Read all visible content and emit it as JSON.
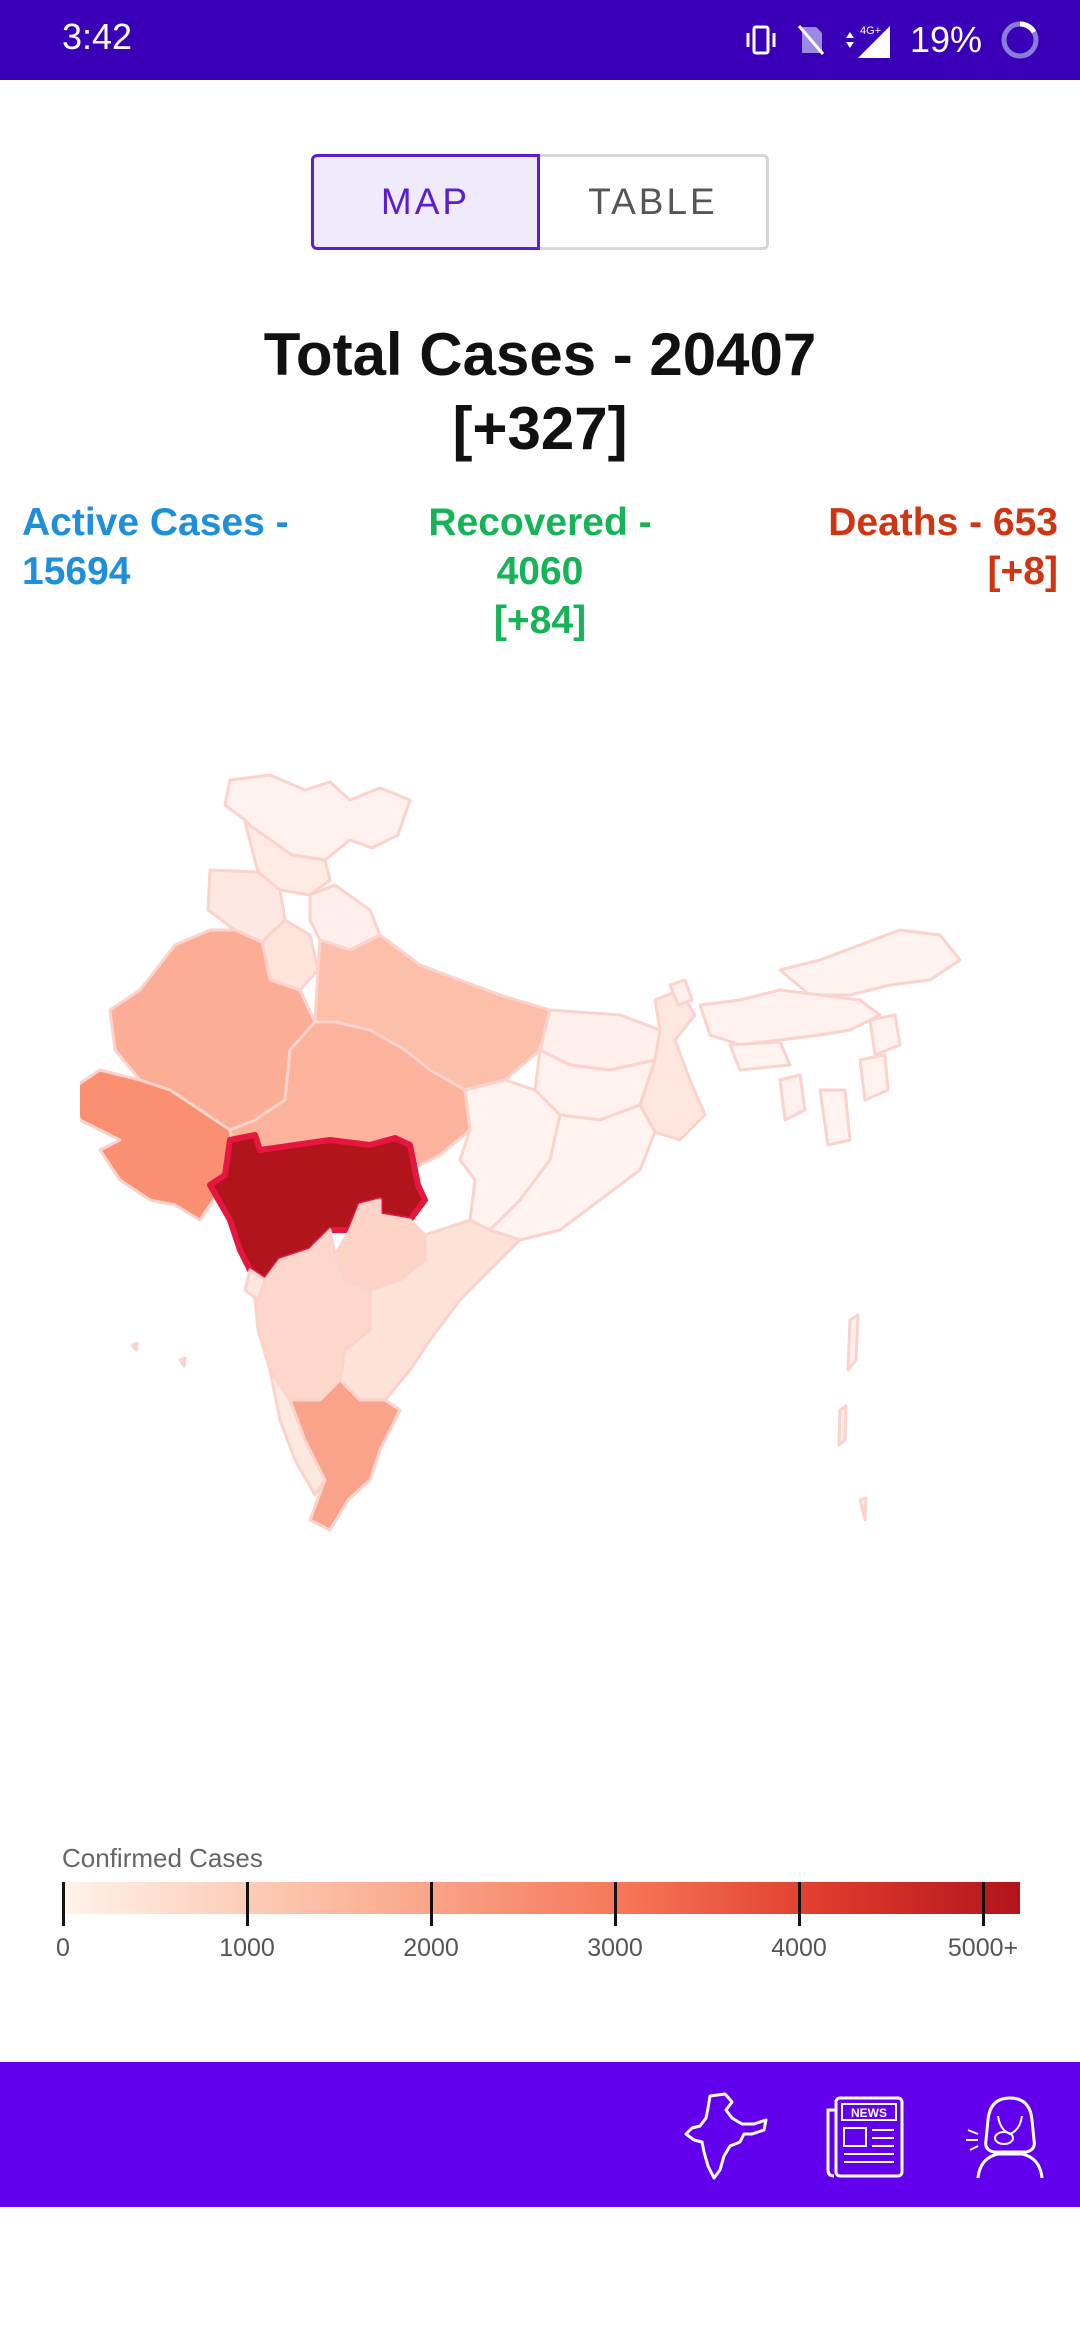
{
  "status_bar": {
    "time": "3:42",
    "battery": "19%"
  },
  "toggle": {
    "map_label": "MAP",
    "table_label": "TABLE",
    "selected": "MAP"
  },
  "totals": {
    "title": "Total Cases - 20407",
    "delta": "[+327]",
    "active": {
      "label": "Active Cases -",
      "value": "15694"
    },
    "recovered": {
      "label": "Recovered -",
      "value": "4060",
      "delta": "[+84]"
    },
    "deaths": {
      "label": "Deaths - 653",
      "delta": "[+8]"
    }
  },
  "legend": {
    "title": "Confirmed Cases",
    "ticks": [
      "0",
      "1000",
      "2000",
      "3000",
      "4000",
      "5000+"
    ]
  },
  "colors": {
    "primary": "#6200ee",
    "status_bar": "#3a00b8",
    "active": "#1f8fdb",
    "recovered": "#16b456",
    "deaths": "#cf3513",
    "highlight_state": "#b2141c"
  },
  "nav": {
    "items": [
      {
        "icon": "india-map-icon"
      },
      {
        "icon": "news-icon"
      },
      {
        "icon": "sneezing-person-icon"
      }
    ]
  }
}
